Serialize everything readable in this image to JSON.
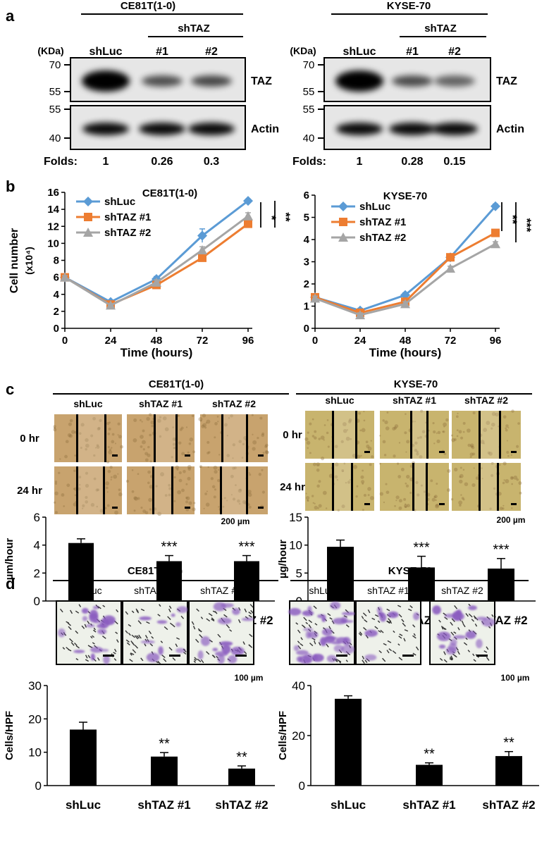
{
  "panel_a": {
    "letter": "a",
    "left": {
      "cell_line": "CE81T(1-0)",
      "group": "shTAZ",
      "lanes": [
        "shLuc",
        "#1",
        "#2"
      ],
      "kda_label": "(KDa)",
      "taz_markers": [
        "70",
        "55"
      ],
      "actin_markers": [
        "55",
        "40"
      ],
      "taz_label": "TAZ",
      "actin_label": "Actin",
      "folds_label": "Folds:",
      "folds": [
        "1",
        "0.26",
        "0.3"
      ],
      "taz_intensity": [
        1,
        0.26,
        0.3
      ]
    },
    "right": {
      "cell_line": "KYSE-70",
      "group": "shTAZ",
      "lanes": [
        "shLuc",
        "#1",
        "#2"
      ],
      "kda_label": "(KDa)",
      "taz_markers": [
        "70",
        "55"
      ],
      "actin_markers": [
        "55",
        "40"
      ],
      "taz_label": "TAZ",
      "actin_label": "Actin",
      "folds_label": "Folds:",
      "folds": [
        "1",
        "0.28",
        "0.15"
      ],
      "taz_intensity": [
        1,
        0.28,
        0.15
      ]
    }
  },
  "panel_b": {
    "letter": "b",
    "ylabel": "Cell number",
    "yunit": "(x10⁴)"
  },
  "panel_c": {
    "letter": "c",
    "left": {
      "cell_line": "CE81T(1-0)",
      "conditions": [
        "shLuc",
        "shTAZ #1",
        "shTAZ #2"
      ],
      "rows": [
        "0 hr",
        "24 hr"
      ],
      "scale": "200 µm"
    },
    "right": {
      "cell_line": "KYSE-70",
      "conditions": [
        "shLuc",
        "shTAZ #1",
        "shTAZ #2"
      ],
      "rows": [
        "0 hr",
        "24 hr"
      ],
      "scale": "200 µm"
    }
  },
  "panel_d": {
    "letter": "d",
    "left": {
      "cell_line": "CE81T(1-0)",
      "conditions": [
        "shLuc",
        "shTAZ #1",
        "shTAZ #2"
      ],
      "scale": "100 µm",
      "stain_density": [
        0.55,
        0.2,
        0.4
      ]
    },
    "right": {
      "cell_line": "KYSE-70",
      "conditions": [
        "shLuc",
        "shTAZ #1",
        "shTAZ #2"
      ],
      "scale": "100 µm",
      "stain_density": [
        1,
        0.1,
        0.45
      ]
    }
  },
  "colors": {
    "shLuc": "#5b9bd5",
    "shTAZ1": "#ed7d31",
    "shTAZ2": "#a5a5a5",
    "bar": "#000000",
    "wound_bg": "#c8a36e",
    "wound_bg2": "#c8b46e",
    "crystal_violet": "#8a5cc0"
  },
  "chart_data": [
    {
      "type": "line",
      "title": "CE81T(1-0)",
      "xlabel": "Time (hours)",
      "ylabel": "Cell number (x10⁴)",
      "x": [
        0,
        24,
        48,
        72,
        96
      ],
      "xticks": [
        "0",
        "24",
        "48",
        "72",
        "96"
      ],
      "ylim": [
        0,
        16
      ],
      "yticks": [
        "0",
        "2",
        "4",
        "6",
        "8",
        "10",
        "12",
        "14",
        "16"
      ],
      "legend_position": "top-left",
      "series": [
        {
          "name": "shLuc",
          "values": [
            6.0,
            3.1,
            5.8,
            10.9,
            15.0
          ],
          "errors": [
            0.3,
            0.2,
            0.3,
            0.8,
            0.2
          ],
          "marker": "diamond"
        },
        {
          "name": "shTAZ #1",
          "values": [
            6.0,
            2.8,
            5.1,
            8.3,
            12.3
          ],
          "errors": [
            0.2,
            0.2,
            0.3,
            0.4,
            0.3
          ],
          "marker": "square"
        },
        {
          "name": "shTAZ #2",
          "values": [
            6.0,
            2.7,
            5.4,
            9.2,
            13.2
          ],
          "errors": [
            0.2,
            0.2,
            0.3,
            0.4,
            0.4
          ],
          "marker": "triangle"
        }
      ],
      "significance": [
        "*",
        "**"
      ]
    },
    {
      "type": "line",
      "title": "KYSE-70",
      "xlabel": "Time (hours)",
      "ylabel": "",
      "x": [
        0,
        24,
        48,
        72,
        96
      ],
      "xticks": [
        "0",
        "24",
        "48",
        "72",
        "96"
      ],
      "ylim": [
        0,
        6
      ],
      "yticks": [
        "0",
        "1",
        "2",
        "3",
        "4",
        "5",
        "6"
      ],
      "legend_position": "top-left",
      "series": [
        {
          "name": "shLuc",
          "values": [
            1.4,
            0.8,
            1.5,
            3.2,
            5.5
          ],
          "errors": [
            0.1,
            0.1,
            0.1,
            0.1,
            0.1
          ],
          "marker": "diamond"
        },
        {
          "name": "shTAZ #1",
          "values": [
            1.4,
            0.7,
            1.2,
            3.2,
            4.3
          ],
          "errors": [
            0.1,
            0.1,
            0.1,
            0.15,
            0.1
          ],
          "marker": "square"
        },
        {
          "name": "shTAZ #2",
          "values": [
            1.35,
            0.6,
            1.1,
            2.7,
            3.8
          ],
          "errors": [
            0.1,
            0.1,
            0.1,
            0.1,
            0.1
          ],
          "marker": "triangle"
        }
      ],
      "significance": [
        "**",
        "***"
      ]
    },
    {
      "type": "bar",
      "ylabel": "µm/hour",
      "categories": [
        "shLuc",
        "shTAZ #1",
        "shTAZ #2"
      ],
      "values": [
        4.15,
        2.85,
        2.85
      ],
      "errors": [
        0.3,
        0.4,
        0.4
      ],
      "ylim": [
        0,
        6
      ],
      "yticks": [
        "0",
        "2",
        "4",
        "6"
      ],
      "annotations": [
        "",
        "***",
        "***"
      ]
    },
    {
      "type": "bar",
      "ylabel": "µg/hour",
      "categories": [
        "shLuc",
        "shTAZ #1",
        "shTAZ #2"
      ],
      "values": [
        9.7,
        6.0,
        5.8
      ],
      "errors": [
        1.2,
        2.0,
        1.8
      ],
      "ylim": [
        0,
        15
      ],
      "yticks": [
        "0",
        "5",
        "10",
        "15"
      ],
      "annotations": [
        "",
        "***",
        "***"
      ]
    },
    {
      "type": "bar",
      "ylabel": "Cells/HPF",
      "categories": [
        "shLuc",
        "shTAZ #1",
        "shTAZ #2"
      ],
      "values": [
        16.8,
        8.7,
        5.1
      ],
      "errors": [
        2.2,
        1.2,
        0.8
      ],
      "ylim": [
        0,
        30
      ],
      "yticks": [
        "0",
        "10",
        "20",
        "30"
      ],
      "annotations": [
        "",
        "**",
        "**"
      ]
    },
    {
      "type": "bar",
      "ylabel": "Cells/HPF",
      "categories": [
        "shLuc",
        "shTAZ #1",
        "shTAZ #2"
      ],
      "values": [
        34.7,
        8.3,
        11.8
      ],
      "errors": [
        1.2,
        0.8,
        1.8
      ],
      "ylim": [
        0,
        40
      ],
      "yticks": [
        "0",
        "20",
        "40"
      ],
      "annotations": [
        "",
        "**",
        "**"
      ]
    }
  ]
}
